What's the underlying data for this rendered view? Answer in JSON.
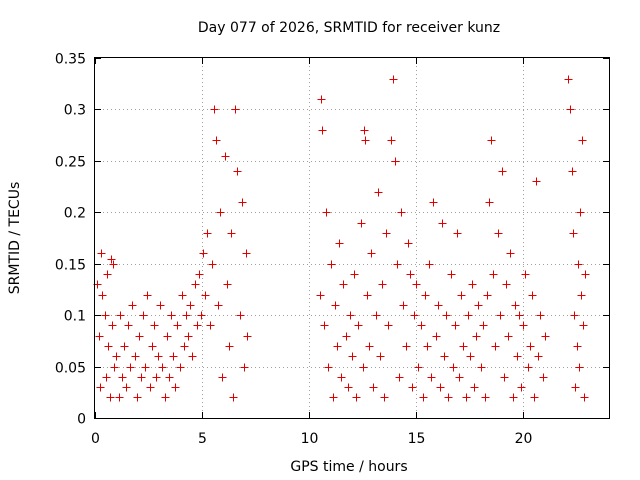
{
  "chart_data": {
    "type": "scatter",
    "title": "Day 077 of 2026, SRMTID for receiver kunz",
    "xlabel": "GPS time / hours",
    "ylabel": "SRMTID / TECUs",
    "xlim": [
      0,
      24
    ],
    "ylim": [
      0,
      0.35
    ],
    "x_ticks": [
      0,
      5,
      10,
      15,
      20
    ],
    "x_tick_labels": [
      "0",
      "5",
      "10",
      "15",
      "20"
    ],
    "y_ticks": [
      0,
      0.05,
      0.1,
      0.15,
      0.2,
      0.25,
      0.3,
      0.35
    ],
    "y_tick_labels": [
      "0",
      "0.05",
      "0.1",
      "0.15",
      "0.2",
      "0.25",
      "0.3",
      "0.35"
    ],
    "grid": true,
    "marker": "+",
    "color": "#e00000",
    "series": [
      {
        "name": "SRMTID",
        "points": [
          [
            0.1,
            0.13
          ],
          [
            0.2,
            0.08
          ],
          [
            0.25,
            0.03
          ],
          [
            0.3,
            0.16
          ],
          [
            0.35,
            0.12
          ],
          [
            0.45,
            0.1
          ],
          [
            0.5,
            0.04
          ],
          [
            0.55,
            0.14
          ],
          [
            0.6,
            0.07
          ],
          [
            0.7,
            0.02
          ],
          [
            0.75,
            0.155
          ],
          [
            0.8,
            0.09
          ],
          [
            0.85,
            0.15
          ],
          [
            0.9,
            0.05
          ],
          [
            1.0,
            0.06
          ],
          [
            1.1,
            0.02
          ],
          [
            1.15,
            0.1
          ],
          [
            1.25,
            0.04
          ],
          [
            1.35,
            0.07
          ],
          [
            1.45,
            0.03
          ],
          [
            1.55,
            0.09
          ],
          [
            1.65,
            0.05
          ],
          [
            1.75,
            0.11
          ],
          [
            1.85,
            0.06
          ],
          [
            1.95,
            0.02
          ],
          [
            2.05,
            0.08
          ],
          [
            2.15,
            0.04
          ],
          [
            2.25,
            0.1
          ],
          [
            2.35,
            0.05
          ],
          [
            2.45,
            0.12
          ],
          [
            2.55,
            0.03
          ],
          [
            2.65,
            0.07
          ],
          [
            2.75,
            0.09
          ],
          [
            2.85,
            0.04
          ],
          [
            2.95,
            0.06
          ],
          [
            3.05,
            0.11
          ],
          [
            3.15,
            0.05
          ],
          [
            3.25,
            0.02
          ],
          [
            3.35,
            0.08
          ],
          [
            3.45,
            0.04
          ],
          [
            3.55,
            0.1
          ],
          [
            3.65,
            0.06
          ],
          [
            3.75,
            0.03
          ],
          [
            3.85,
            0.09
          ],
          [
            3.95,
            0.05
          ],
          [
            4.05,
            0.12
          ],
          [
            4.15,
            0.07
          ],
          [
            4.25,
            0.1
          ],
          [
            4.35,
            0.08
          ],
          [
            4.45,
            0.11
          ],
          [
            4.55,
            0.06
          ],
          [
            4.65,
            0.13
          ],
          [
            4.75,
            0.09
          ],
          [
            4.85,
            0.14
          ],
          [
            4.95,
            0.1
          ],
          [
            5.05,
            0.16
          ],
          [
            5.15,
            0.12
          ],
          [
            5.25,
            0.18
          ],
          [
            5.35,
            0.09
          ],
          [
            5.45,
            0.15
          ],
          [
            5.55,
            0.3
          ],
          [
            5.65,
            0.27
          ],
          [
            5.75,
            0.11
          ],
          [
            5.85,
            0.2
          ],
          [
            5.95,
            0.04
          ],
          [
            6.05,
            0.255
          ],
          [
            6.15,
            0.13
          ],
          [
            6.25,
            0.07
          ],
          [
            6.35,
            0.18
          ],
          [
            6.45,
            0.02
          ],
          [
            6.55,
            0.3
          ],
          [
            6.65,
            0.24
          ],
          [
            6.75,
            0.1
          ],
          [
            6.85,
            0.21
          ],
          [
            6.95,
            0.05
          ],
          [
            7.05,
            0.16
          ],
          [
            7.1,
            0.08
          ],
          [
            10.5,
            0.12
          ],
          [
            10.55,
            0.31
          ],
          [
            10.6,
            0.28
          ],
          [
            10.7,
            0.09
          ],
          [
            10.8,
            0.2
          ],
          [
            10.9,
            0.05
          ],
          [
            11.0,
            0.15
          ],
          [
            11.1,
            0.02
          ],
          [
            11.2,
            0.11
          ],
          [
            11.3,
            0.07
          ],
          [
            11.4,
            0.17
          ],
          [
            11.5,
            0.04
          ],
          [
            11.6,
            0.13
          ],
          [
            11.7,
            0.08
          ],
          [
            11.8,
            0.03
          ],
          [
            11.9,
            0.1
          ],
          [
            12.0,
            0.06
          ],
          [
            12.1,
            0.14
          ],
          [
            12.2,
            0.02
          ],
          [
            12.3,
            0.09
          ],
          [
            12.4,
            0.19
          ],
          [
            12.5,
            0.05
          ],
          [
            12.55,
            0.28
          ],
          [
            12.6,
            0.27
          ],
          [
            12.7,
            0.12
          ],
          [
            12.8,
            0.07
          ],
          [
            12.9,
            0.16
          ],
          [
            13.0,
            0.03
          ],
          [
            13.1,
            0.1
          ],
          [
            13.2,
            0.22
          ],
          [
            13.3,
            0.06
          ],
          [
            13.4,
            0.13
          ],
          [
            13.5,
            0.02
          ],
          [
            13.6,
            0.18
          ],
          [
            13.7,
            0.09
          ],
          [
            13.8,
            0.27
          ],
          [
            13.9,
            0.33
          ],
          [
            14.0,
            0.25
          ],
          [
            14.1,
            0.15
          ],
          [
            14.2,
            0.04
          ],
          [
            14.3,
            0.2
          ],
          [
            14.4,
            0.11
          ],
          [
            14.5,
            0.07
          ],
          [
            14.6,
            0.17
          ],
          [
            14.7,
            0.14
          ],
          [
            14.8,
            0.03
          ],
          [
            14.9,
            0.1
          ],
          [
            15.0,
            0.13
          ],
          [
            15.1,
            0.05
          ],
          [
            15.2,
            0.09
          ],
          [
            15.3,
            0.02
          ],
          [
            15.4,
            0.12
          ],
          [
            15.5,
            0.07
          ],
          [
            15.6,
            0.15
          ],
          [
            15.7,
            0.04
          ],
          [
            15.8,
            0.21
          ],
          [
            15.9,
            0.08
          ],
          [
            16.0,
            0.11
          ],
          [
            16.1,
            0.03
          ],
          [
            16.2,
            0.19
          ],
          [
            16.3,
            0.06
          ],
          [
            16.4,
            0.1
          ],
          [
            16.5,
            0.02
          ],
          [
            16.6,
            0.14
          ],
          [
            16.7,
            0.05
          ],
          [
            16.8,
            0.09
          ],
          [
            16.9,
            0.18
          ],
          [
            17.0,
            0.04
          ],
          [
            17.1,
            0.12
          ],
          [
            17.2,
            0.07
          ],
          [
            17.3,
            0.02
          ],
          [
            17.4,
            0.1
          ],
          [
            17.5,
            0.06
          ],
          [
            17.6,
            0.13
          ],
          [
            17.7,
            0.03
          ],
          [
            17.8,
            0.08
          ],
          [
            17.9,
            0.11
          ],
          [
            18.0,
            0.05
          ],
          [
            18.1,
            0.09
          ],
          [
            18.2,
            0.02
          ],
          [
            18.3,
            0.12
          ],
          [
            18.4,
            0.21
          ],
          [
            18.5,
            0.27
          ],
          [
            18.6,
            0.14
          ],
          [
            18.7,
            0.07
          ],
          [
            18.8,
            0.18
          ],
          [
            18.9,
            0.1
          ],
          [
            19.0,
            0.24
          ],
          [
            19.1,
            0.04
          ],
          [
            19.2,
            0.13
          ],
          [
            19.3,
            0.08
          ],
          [
            19.4,
            0.16
          ],
          [
            19.5,
            0.02
          ],
          [
            19.6,
            0.11
          ],
          [
            19.7,
            0.06
          ],
          [
            19.8,
            0.1
          ],
          [
            19.9,
            0.03
          ],
          [
            20.0,
            0.09
          ],
          [
            20.1,
            0.14
          ],
          [
            20.2,
            0.05
          ],
          [
            20.3,
            0.07
          ],
          [
            20.4,
            0.12
          ],
          [
            20.5,
            0.02
          ],
          [
            20.6,
            0.23
          ],
          [
            20.7,
            0.06
          ],
          [
            20.8,
            0.1
          ],
          [
            20.9,
            0.04
          ],
          [
            21.0,
            0.08
          ],
          [
            22.1,
            0.33
          ],
          [
            22.2,
            0.3
          ],
          [
            22.25,
            0.24
          ],
          [
            22.3,
            0.18
          ],
          [
            22.35,
            0.1
          ],
          [
            22.4,
            0.03
          ],
          [
            22.5,
            0.07
          ],
          [
            22.55,
            0.15
          ],
          [
            22.6,
            0.05
          ],
          [
            22.65,
            0.2
          ],
          [
            22.7,
            0.12
          ],
          [
            22.75,
            0.27
          ],
          [
            22.8,
            0.09
          ],
          [
            22.85,
            0.02
          ],
          [
            22.9,
            0.14
          ]
        ]
      }
    ]
  }
}
